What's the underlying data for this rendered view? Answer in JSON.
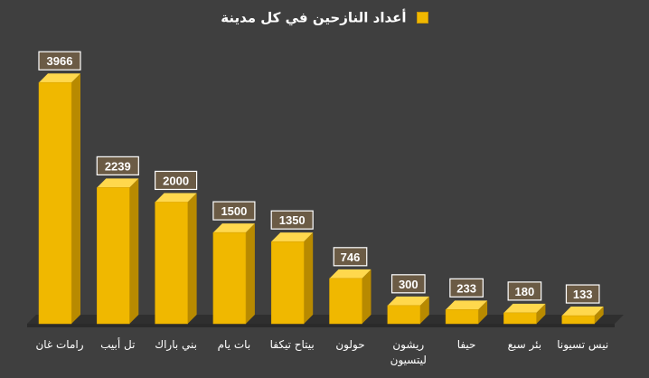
{
  "chart_data": {
    "type": "bar",
    "legend": {
      "label": "أعداد النازحين في كل مدينة",
      "position": "top"
    },
    "categories": [
      "رامات غان",
      "تل أبيب",
      "بني باراك",
      "بات يام",
      "بيتاح تيكفا",
      "حولون",
      "ريشون ليتسيون",
      "حيفا",
      "بئر سبع",
      "نيس تسيونا"
    ],
    "series": [
      {
        "name": "أعداد النازحين في كل مدينة",
        "values": [
          3966,
          2239,
          2000,
          1500,
          1350,
          746,
          300,
          233,
          180,
          133
        ]
      }
    ],
    "ylim": [
      0,
      4400
    ],
    "grid": false,
    "data_labels": true,
    "style": "3d-bar",
    "colors": {
      "background": "#3f3f3f",
      "bar_front": "#f0b800",
      "bar_side": "#b88a00",
      "bar_top": "#ffd84d",
      "label_box": "#6b5b45",
      "floor": "#2f2f2f",
      "text": "#ffffff"
    }
  }
}
